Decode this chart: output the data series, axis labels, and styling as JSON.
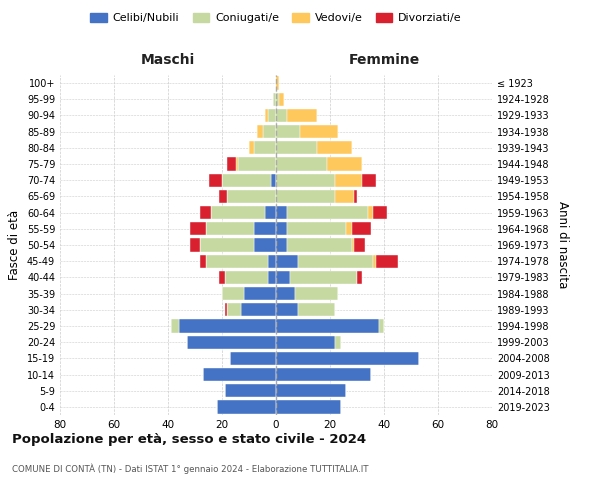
{
  "age_groups": [
    "0-4",
    "5-9",
    "10-14",
    "15-19",
    "20-24",
    "25-29",
    "30-34",
    "35-39",
    "40-44",
    "45-49",
    "50-54",
    "55-59",
    "60-64",
    "65-69",
    "70-74",
    "75-79",
    "80-84",
    "85-89",
    "90-94",
    "95-99",
    "100+"
  ],
  "birth_years": [
    "2019-2023",
    "2014-2018",
    "2009-2013",
    "2004-2008",
    "1999-2003",
    "1994-1998",
    "1989-1993",
    "1984-1988",
    "1979-1983",
    "1974-1978",
    "1969-1973",
    "1964-1968",
    "1959-1963",
    "1954-1958",
    "1949-1953",
    "1944-1948",
    "1939-1943",
    "1934-1938",
    "1929-1933",
    "1924-1928",
    "≤ 1923"
  ],
  "male": {
    "celibi": [
      22,
      19,
      27,
      17,
      33,
      36,
      13,
      12,
      3,
      3,
      8,
      8,
      4,
      0,
      2,
      0,
      0,
      0,
      0,
      0,
      0
    ],
    "coniugati": [
      0,
      0,
      0,
      0,
      0,
      3,
      5,
      8,
      16,
      23,
      20,
      18,
      20,
      18,
      18,
      14,
      8,
      5,
      3,
      1,
      0
    ],
    "vedovi": [
      0,
      0,
      0,
      0,
      0,
      0,
      0,
      0,
      0,
      0,
      0,
      0,
      0,
      0,
      0,
      1,
      2,
      2,
      1,
      0,
      0
    ],
    "divorziati": [
      0,
      0,
      0,
      0,
      0,
      0,
      1,
      0,
      2,
      2,
      4,
      6,
      4,
      3,
      5,
      3,
      0,
      0,
      0,
      0,
      0
    ]
  },
  "female": {
    "nubili": [
      24,
      26,
      35,
      53,
      22,
      38,
      8,
      7,
      5,
      8,
      4,
      4,
      4,
      0,
      0,
      0,
      0,
      0,
      0,
      0,
      0
    ],
    "coniugate": [
      0,
      0,
      0,
      0,
      2,
      2,
      14,
      16,
      25,
      28,
      24,
      22,
      30,
      22,
      22,
      19,
      15,
      9,
      4,
      1,
      0
    ],
    "vedove": [
      0,
      0,
      0,
      0,
      0,
      0,
      0,
      0,
      0,
      1,
      1,
      2,
      2,
      7,
      10,
      13,
      13,
      14,
      11,
      2,
      1
    ],
    "divorziate": [
      0,
      0,
      0,
      0,
      0,
      0,
      0,
      0,
      2,
      8,
      4,
      7,
      5,
      1,
      5,
      0,
      0,
      0,
      0,
      0,
      0
    ]
  },
  "colors": {
    "celibi": "#4472c4",
    "coniugati": "#c5d9a0",
    "vedovi": "#ffc85c",
    "divorziati": "#d9202e"
  },
  "title": "Popolazione per età, sesso e stato civile - 2024",
  "subtitle": "COMUNE DI CONTÀ (TN) - Dati ISTAT 1° gennaio 2024 - Elaborazione TUTTITALIA.IT",
  "xlabel_left": "Maschi",
  "xlabel_right": "Femmine",
  "ylabel_left": "Fasce di età",
  "ylabel_right": "Anni di nascita",
  "xlim": 80,
  "legend_labels": [
    "Celibi/Nubili",
    "Coniugati/e",
    "Vedovi/e",
    "Divorziati/e"
  ],
  "background_color": "#ffffff"
}
